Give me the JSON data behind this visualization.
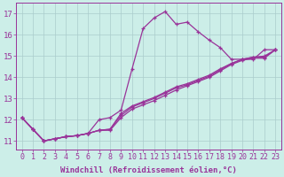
{
  "background_color": "#cceee8",
  "grid_color": "#aacccc",
  "line_color": "#993399",
  "marker_color": "#993399",
  "xlabel": "Windchill (Refroidissement éolien,°C)",
  "ylabel_ticks": [
    11,
    12,
    13,
    14,
    15,
    16,
    17
  ],
  "xlim": [
    -0.5,
    23.5
  ],
  "ylim": [
    10.6,
    17.5
  ],
  "series1_x": [
    0,
    1,
    2,
    3,
    4,
    5,
    6,
    7,
    8,
    9,
    10,
    11,
    12,
    13,
    14,
    15,
    16,
    17,
    18,
    19,
    20,
    21,
    22,
    23
  ],
  "series1_y": [
    12.1,
    11.55,
    11.0,
    11.1,
    11.2,
    11.25,
    11.35,
    12.0,
    12.1,
    12.45,
    14.4,
    16.3,
    16.8,
    17.1,
    16.5,
    16.6,
    16.15,
    15.75,
    15.4,
    14.85,
    14.85,
    14.85,
    15.3,
    15.3
  ],
  "series2_x": [
    0,
    1,
    2,
    3,
    4,
    5,
    6,
    7,
    8,
    9,
    10,
    11,
    12,
    13,
    14,
    15,
    16,
    17,
    18,
    19,
    20,
    21,
    22,
    23
  ],
  "series2_y": [
    12.1,
    11.55,
    11.0,
    11.1,
    11.2,
    11.25,
    11.35,
    11.5,
    11.5,
    12.1,
    12.5,
    12.7,
    12.9,
    13.15,
    13.4,
    13.6,
    13.8,
    14.0,
    14.3,
    14.6,
    14.8,
    14.9,
    14.9,
    15.3
  ],
  "series3_x": [
    0,
    1,
    2,
    3,
    4,
    5,
    6,
    7,
    8,
    9,
    10,
    11,
    12,
    13,
    14,
    15,
    16,
    17,
    18,
    19,
    20,
    21,
    22,
    23
  ],
  "series3_y": [
    12.1,
    11.55,
    11.0,
    11.1,
    11.2,
    11.25,
    11.35,
    11.5,
    11.55,
    12.2,
    12.6,
    12.8,
    13.0,
    13.25,
    13.5,
    13.65,
    13.85,
    14.05,
    14.35,
    14.65,
    14.85,
    14.95,
    14.95,
    15.3
  ],
  "series4_x": [
    0,
    1,
    2,
    3,
    4,
    5,
    6,
    7,
    8,
    9,
    10,
    11,
    12,
    13,
    14,
    15,
    16,
    17,
    18,
    19,
    20,
    21,
    22,
    23
  ],
  "series4_y": [
    12.1,
    11.55,
    11.0,
    11.1,
    11.2,
    11.25,
    11.35,
    11.5,
    11.55,
    12.3,
    12.65,
    12.85,
    13.05,
    13.3,
    13.55,
    13.7,
    13.9,
    14.1,
    14.4,
    14.65,
    14.85,
    14.95,
    15.0,
    15.3
  ],
  "xtick_labels": [
    "0",
    "1",
    "2",
    "3",
    "4",
    "5",
    "6",
    "7",
    "8",
    "9",
    "10",
    "11",
    "12",
    "13",
    "14",
    "15",
    "16",
    "17",
    "18",
    "19",
    "20",
    "21",
    "22",
    "23"
  ],
  "label_fontsize": 6.5,
  "tick_fontsize": 6.0
}
